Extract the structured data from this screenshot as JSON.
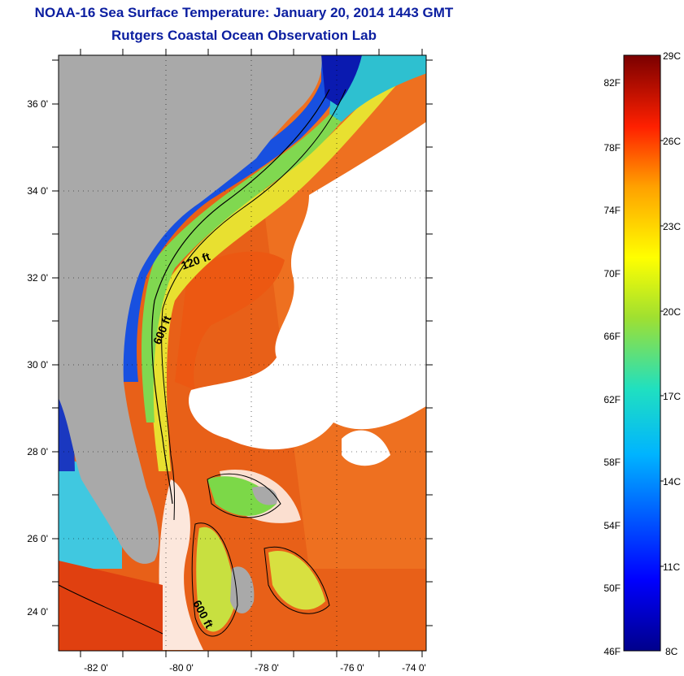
{
  "title": "NOAA-16 Sea Surface Temperature:  January 20, 2014 1443 GMT",
  "subtitle": "Rutgers Coastal Ocean Observation Lab",
  "map": {
    "lon_ticks": [
      "-82 0'",
      "-80 0'",
      "-78 0'",
      "-76 0'",
      "-74 0'"
    ],
    "lat_ticks": [
      "36 0'",
      "34 0'",
      "32 0'",
      "30 0'",
      "28 0'",
      "26 0'",
      "24 0'"
    ],
    "contour_labels": [
      "120 ft",
      "600 ft",
      "600 ft"
    ],
    "colors": {
      "land": "#a9a9a9",
      "cloud": "#ffffff",
      "warm": "#f05010"
    }
  },
  "colorbar": {
    "fahrenheit": [
      "82F",
      "78F",
      "74F",
      "70F",
      "66F",
      "62F",
      "58F",
      "54F",
      "50F",
      "46F"
    ],
    "celsius": [
      "29C",
      "26C",
      "23C",
      "20C",
      "17C",
      "14C",
      "11C",
      "8C"
    ]
  }
}
